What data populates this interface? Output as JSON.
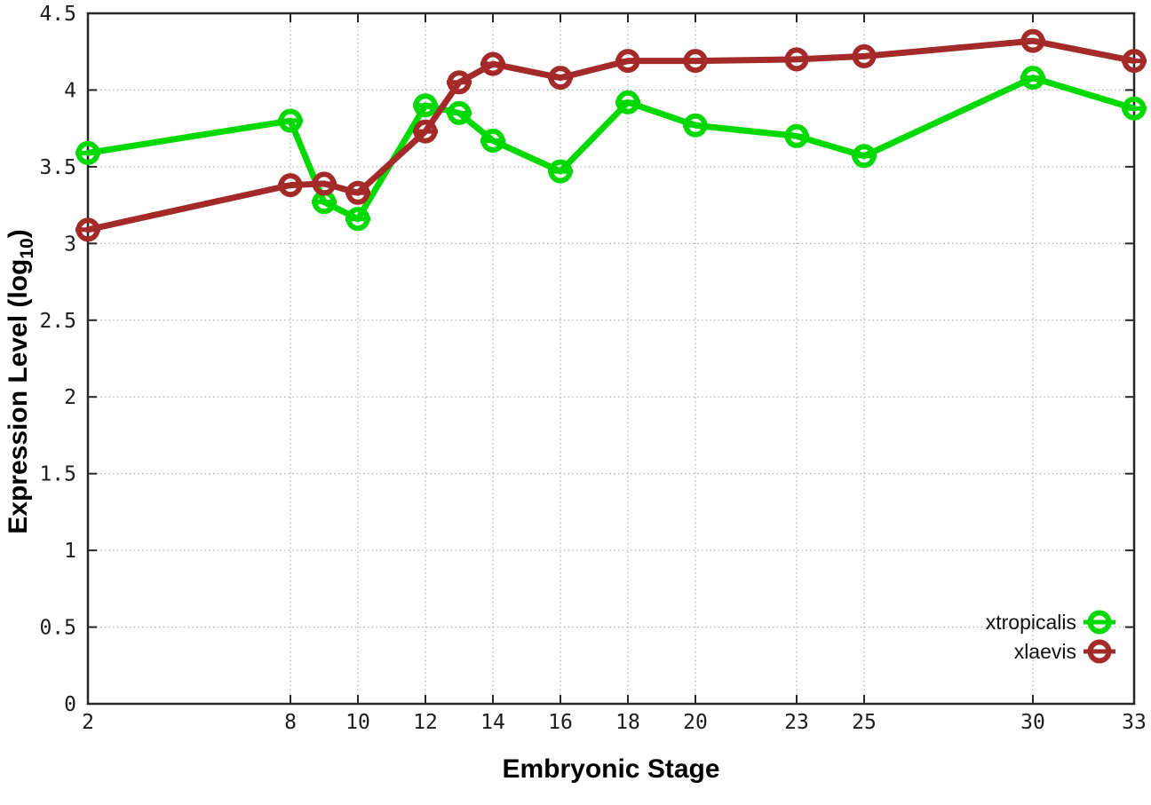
{
  "page": {
    "background": "#ffffff"
  },
  "xaxis": {
    "title": "Embryonic Stage",
    "tick_labels": [
      "2",
      "8",
      "10",
      "12",
      "14",
      "16",
      "18",
      "20",
      "23",
      "25",
      "30",
      "33"
    ]
  },
  "yaxis": {
    "title_main": "Expression Level (log",
    "title_sub": "10",
    "title_close": ")",
    "tick_labels": [
      "0",
      "0.5",
      "1",
      "1.5",
      "2",
      "2.5",
      "3",
      "3.5",
      "4",
      "4.5"
    ]
  },
  "legend": {
    "position": "bottom-right",
    "entries": [
      {
        "label": "xtropicalis",
        "color": "#00d900"
      },
      {
        "label": "xlaevis",
        "color": "#a42a2a"
      }
    ]
  },
  "colors": {
    "axis": "#262626",
    "grid": "#b5b5b5",
    "tick_text": "#1c1c1c",
    "series_green": "#00d900",
    "series_brown": "#a42a2a"
  },
  "chart_data": {
    "type": "line",
    "title": "",
    "xlabel": "Embryonic Stage",
    "ylabel": "Expression Level (log10)",
    "xlim": [
      2,
      33
    ],
    "ylim": [
      0,
      4.5
    ],
    "xticks": [
      2,
      8,
      10,
      12,
      14,
      16,
      18,
      20,
      23,
      25,
      30,
      33
    ],
    "yticks": [
      0,
      0.5,
      1,
      1.5,
      2,
      2.5,
      3,
      3.5,
      4,
      4.5
    ],
    "grid": true,
    "legend_position": "bottom-right",
    "marker": "open-circle-with-error-cap",
    "x": [
      2,
      8,
      9,
      10,
      12,
      13,
      14,
      16,
      18,
      20,
      23,
      25,
      30,
      33
    ],
    "series": [
      {
        "name": "xtropicalis",
        "color": "#00d900",
        "values": [
          3.59,
          3.8,
          3.27,
          3.16,
          3.9,
          3.85,
          3.67,
          3.47,
          3.92,
          3.77,
          3.7,
          3.57,
          4.08,
          3.88
        ]
      },
      {
        "name": "xlaevis",
        "color": "#a42a2a",
        "values": [
          3.09,
          3.38,
          3.39,
          3.33,
          3.73,
          4.05,
          4.17,
          4.08,
          4.19,
          4.19,
          4.2,
          4.22,
          4.32,
          4.19
        ]
      }
    ]
  }
}
